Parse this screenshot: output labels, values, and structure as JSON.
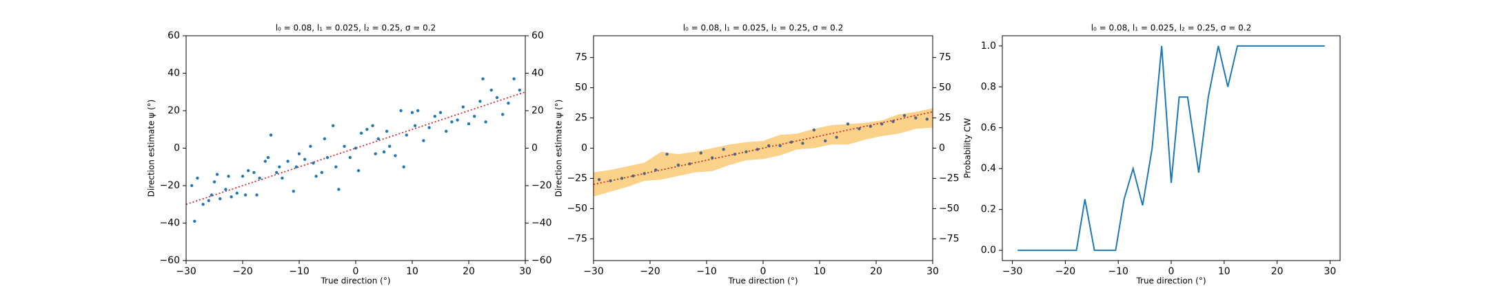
{
  "chart_data": [
    {
      "type": "scatter",
      "title": "l₀ = 0.08, l₁ = 0.025, l₂ = 0.25, σ = 0.2",
      "x_label": "True direction (°)",
      "y_label": "Direction estimate ψ (°)",
      "xlim": [
        -30,
        30
      ],
      "ylim": [
        -60,
        60
      ],
      "y2lim": [
        -60,
        60
      ],
      "xticks": [
        {
          "value": -30,
          "label": "−30"
        },
        {
          "value": -20,
          "label": "−20"
        },
        {
          "value": -10,
          "label": "−10"
        },
        0,
        10,
        20,
        30
      ],
      "yticks": [
        {
          "value": -60,
          "label": "−60"
        },
        {
          "value": -40,
          "label": "−40"
        },
        {
          "value": -20,
          "label": "−20"
        },
        0,
        20,
        40,
        60
      ],
      "y2ticks": [
        {
          "value": -60,
          "label": "−60"
        },
        {
          "value": -40,
          "label": "−40"
        },
        {
          "value": -20,
          "label": "−20"
        },
        0,
        20,
        40,
        60
      ],
      "reference_line": {
        "x": [
          -30,
          30
        ],
        "values": [
          -30,
          30
        ],
        "color": "#d62728"
      },
      "series": [
        {
          "color": "#1f77b4",
          "x": [
            -29,
            -28.5,
            -28,
            -27,
            -26,
            -25.5,
            -25,
            -24.5,
            -24,
            -23,
            -22.5,
            -22,
            -21,
            -20,
            -19.5,
            -19,
            -18,
            -17.5,
            -17,
            -16,
            -15.5,
            -15,
            -14,
            -13.5,
            -13,
            -12,
            -11,
            -10.5,
            -10,
            -9,
            -8,
            -7.5,
            -7,
            -6,
            -5.5,
            -5,
            -4,
            -3.5,
            -3,
            -2,
            -1,
            0,
            0.5,
            1,
            2,
            3,
            3.5,
            4,
            5,
            5.5,
            6,
            7,
            8,
            8.5,
            9,
            10,
            10.5,
            11,
            12,
            13,
            14,
            15,
            16,
            17,
            18,
            19,
            20,
            21,
            22,
            22.5,
            23,
            24,
            25,
            26,
            27,
            28,
            29
          ],
          "values": [
            -20,
            -39,
            -16,
            -30,
            -28,
            -25,
            -18,
            -14,
            -27,
            -22,
            -15,
            -26,
            -24,
            -15,
            -25,
            -12,
            -13,
            -25,
            -16,
            -7,
            -5,
            7,
            -13,
            -10,
            -16,
            -7,
            -23,
            -10,
            -3,
            -6,
            1,
            -8,
            -15,
            -13,
            5,
            -5,
            12,
            -10,
            -22,
            1,
            -5,
            0,
            -12,
            8,
            10,
            12,
            -3,
            5,
            -2,
            9,
            1,
            -4,
            20,
            -10,
            7,
            19,
            12,
            20,
            4,
            11,
            17,
            19,
            9,
            14,
            15,
            22,
            13,
            17,
            25,
            37,
            14,
            31,
            27,
            18,
            24,
            37,
            31
          ]
        }
      ]
    },
    {
      "type": "scatter",
      "title": "l₀ = 0.08, l₁ = 0.025, l₂ = 0.25, σ = 0.2",
      "x_label": "True direction (°)",
      "y_label": "Direction estimate ψ (°)",
      "xlim": [
        -30,
        30
      ],
      "ylim": [
        -93,
        93
      ],
      "y2lim": [
        -93,
        93
      ],
      "xticks": [
        {
          "value": -30,
          "label": "−30"
        },
        {
          "value": -20,
          "label": "−20"
        },
        {
          "value": -10,
          "label": "−10"
        },
        0,
        10,
        20,
        30
      ],
      "yticks": [
        {
          "value": -75,
          "label": "−75"
        },
        {
          "value": -50,
          "label": "−50"
        },
        {
          "value": -25,
          "label": "−25"
        },
        0,
        25,
        50,
        75
      ],
      "y2ticks": [
        {
          "value": -75,
          "label": "−75"
        },
        {
          "value": -50,
          "label": "−50"
        },
        {
          "value": -25,
          "label": "−25"
        },
        0,
        25,
        50,
        75
      ],
      "band": {
        "color": "#fcd28a",
        "x": [
          -30,
          -27,
          -24,
          -21,
          -18,
          -15,
          -12,
          -9,
          -6,
          -3,
          0,
          3,
          6,
          9,
          12,
          15,
          18,
          21,
          24,
          27,
          30
        ],
        "lower": [
          -40,
          -36,
          -32,
          -27,
          -26,
          -23,
          -20,
          -19,
          -14,
          -10,
          -9,
          -6,
          -1,
          0,
          3,
          3,
          7,
          10,
          12,
          16,
          17
        ],
        "upper": [
          -20,
          -18,
          -15,
          -12,
          -3,
          -5,
          -3,
          0,
          3,
          5,
          6,
          11,
          12,
          16,
          19,
          20,
          21,
          23,
          28,
          30,
          33
        ]
      },
      "reference_line": {
        "x": [
          -30,
          30
        ],
        "values": [
          -30,
          30
        ],
        "color": "#d62728"
      },
      "series": [
        {
          "color": "#4a6680",
          "x": [
            -29,
            -27,
            -25,
            -23,
            -21,
            -19,
            -17,
            -15,
            -13,
            -11,
            -9,
            -7,
            -5,
            -3,
            -1,
            1,
            3,
            5,
            7,
            9,
            11,
            13,
            15,
            17,
            19,
            21,
            23,
            25,
            27,
            29
          ],
          "values": [
            -26,
            -27,
            -25,
            -23,
            -21,
            -18,
            -5,
            -14,
            -13,
            -4,
            -8,
            -1,
            -5,
            -3,
            -1,
            2,
            2,
            5,
            4,
            15,
            6,
            9,
            20,
            16,
            18,
            20,
            22,
            27,
            25,
            24
          ]
        }
      ]
    },
    {
      "type": "line",
      "title": "l₀ = 0.08, l₁ = 0.025, l₂ = 0.25, σ = 0.2",
      "x_label": "True direction (°)",
      "y_label": "Probability CW",
      "xlim": [
        -31.9,
        31.9
      ],
      "ylim": [
        -0.05,
        1.05
      ],
      "xticks": [
        {
          "value": -30,
          "label": "−30"
        },
        {
          "value": -20,
          "label": "−20"
        },
        {
          "value": -10,
          "label": "−10"
        },
        0,
        10,
        20,
        30
      ],
      "yticks": [
        {
          "value": 0,
          "label": "0.0"
        },
        0.2,
        0.4,
        0.6,
        0.8,
        {
          "value": 1,
          "label": "1.0"
        }
      ],
      "series": [
        {
          "color": "#1f77b4",
          "x": [
            -29,
            -26.6,
            -24.2,
            -21.8,
            -19.4,
            -17.9,
            -16.3,
            -14.5,
            -12.2,
            -10.5,
            -8.9,
            -7.2,
            -5.4,
            -3.6,
            -1.8,
            0,
            1.5,
            3.1,
            5.2,
            7,
            8.9,
            10.7,
            12.5,
            15,
            17.5,
            20,
            22.5,
            25,
            27,
            29
          ],
          "values": [
            0,
            0,
            0,
            0,
            0,
            0,
            0.25,
            0,
            0,
            0,
            0.25,
            0.4,
            0.22,
            0.5,
            1,
            0.33,
            0.75,
            0.75,
            0.38,
            0.75,
            1,
            0.8,
            1,
            1,
            1,
            1,
            1,
            1,
            1,
            1
          ]
        }
      ]
    }
  ]
}
